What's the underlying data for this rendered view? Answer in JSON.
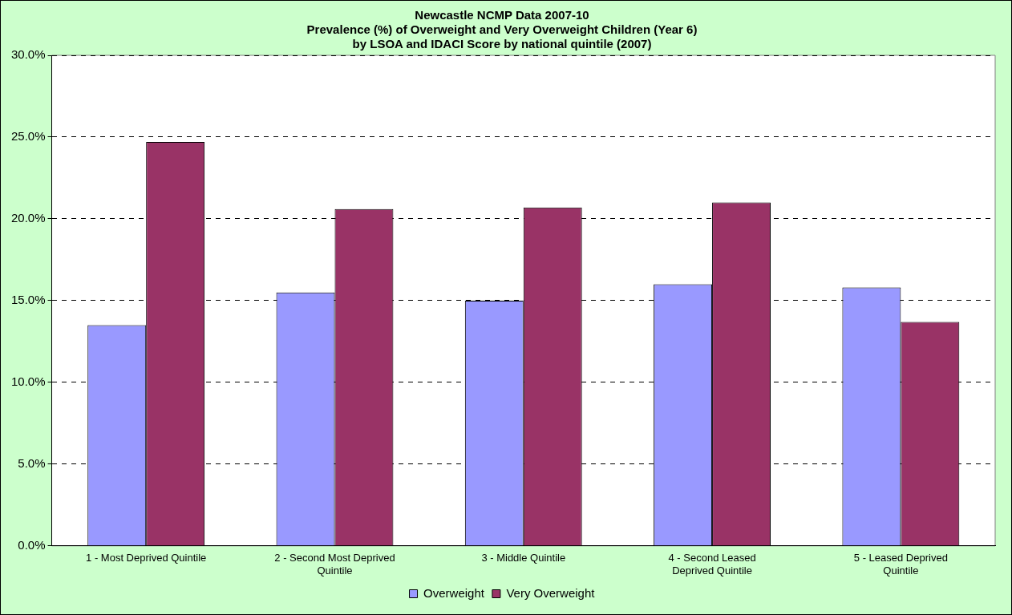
{
  "chart_data": {
    "type": "bar",
    "title": [
      "Newcastle NCMP Data 2007-10",
      "Prevalence (%) of Overweight and Very Overweight Children (Year 6)",
      "by LSOA and IDACI Score by national quintile (2007)"
    ],
    "categories": [
      [
        "1 - Most Deprived Quintile"
      ],
      [
        "2 - Second Most Deprived",
        "Quintile"
      ],
      [
        "3 - Middle Quintile"
      ],
      [
        "4 - Second Leased",
        "Deprived Quintile"
      ],
      [
        "5 - Leased Deprived",
        "Quintile"
      ]
    ],
    "series": [
      {
        "name": "Overweight",
        "color": "#9999ff",
        "values": [
          13.5,
          15.5,
          15.0,
          16.0,
          15.8
        ]
      },
      {
        "name": "Very Overweight",
        "color": "#993366",
        "values": [
          24.7,
          20.6,
          20.7,
          21.0,
          13.7
        ]
      }
    ],
    "ylim": [
      0,
      30
    ],
    "yticks": [
      {
        "value": 0,
        "label": "0.0%"
      },
      {
        "value": 5,
        "label": "5.0%"
      },
      {
        "value": 10,
        "label": "10.0%"
      },
      {
        "value": 15,
        "label": "15.0%"
      },
      {
        "value": 20,
        "label": "20.0%"
      },
      {
        "value": 25,
        "label": "25.0%"
      },
      {
        "value": 30,
        "label": "30.0%"
      }
    ],
    "grid": "y",
    "legend": "bottom"
  }
}
